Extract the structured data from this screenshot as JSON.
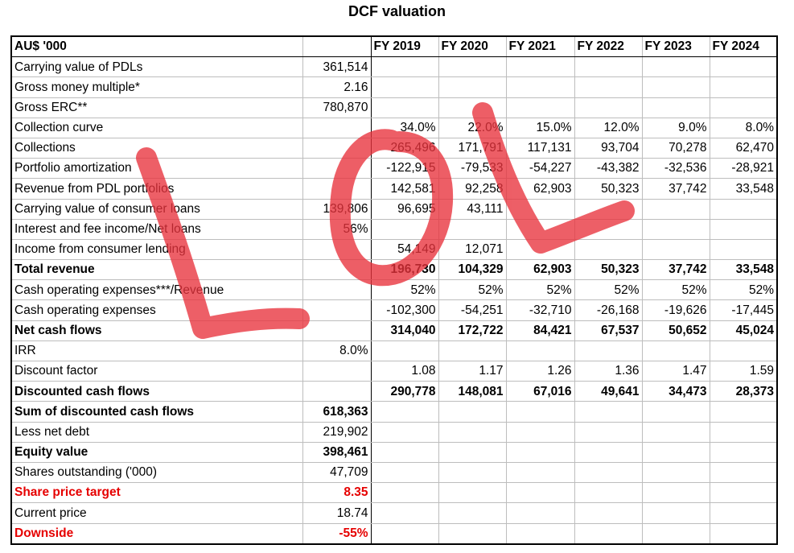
{
  "title": "DCF valuation",
  "header": {
    "unit_label": "AU$ '000",
    "years": [
      "FY 2019",
      "FY 2020",
      "FY 2021",
      "FY 2022",
      "FY 2023",
      "FY 2024"
    ]
  },
  "rows": [
    {
      "label": "Carrying value of PDLs",
      "value": "361,514",
      "years": [
        "",
        "",
        "",
        "",
        "",
        ""
      ]
    },
    {
      "label": "Gross money multiple*",
      "value": "2.16",
      "years": [
        "",
        "",
        "",
        "",
        "",
        ""
      ]
    },
    {
      "label": "Gross ERC**",
      "value": "780,870",
      "years": [
        "",
        "",
        "",
        "",
        "",
        ""
      ]
    },
    {
      "label": "Collection curve",
      "value": "",
      "years": [
        "34.0%",
        "22.0%",
        "15.0%",
        "12.0%",
        "9.0%",
        "8.0%"
      ]
    },
    {
      "label": "Collections",
      "value": "",
      "years": [
        "265,496",
        "171,791",
        "117,131",
        "93,704",
        "70,278",
        "62,470"
      ]
    },
    {
      "label": "Portfolio amortization",
      "value": "",
      "years": [
        "-122,915",
        "-79,533",
        "-54,227",
        "-43,382",
        "-32,536",
        "-28,921"
      ]
    },
    {
      "label": "Revenue from PDL portfolios",
      "value": "",
      "years": [
        "142,581",
        "92,258",
        "62,903",
        "50,323",
        "37,742",
        "33,548"
      ]
    },
    {
      "label": "Carrying value of consumer loans",
      "value": "139,806",
      "years": [
        "96,695",
        "43,111",
        "",
        "",
        "",
        ""
      ]
    },
    {
      "label": "Interest and fee income/Net loans",
      "value": "56%",
      "years": [
        "",
        "",
        "",
        "",
        "",
        ""
      ]
    },
    {
      "label": "Income from consumer lending",
      "value": "",
      "years": [
        "54,149",
        "12,071",
        "",
        "",
        "",
        ""
      ]
    },
    {
      "label": "Total revenue",
      "value": "",
      "years": [
        "196,730",
        "104,329",
        "62,903",
        "50,323",
        "37,742",
        "33,548"
      ]
    },
    {
      "label": "Cash operating expenses***/Revenue",
      "value": "",
      "years": [
        "52%",
        "52%",
        "52%",
        "52%",
        "52%",
        "52%"
      ]
    },
    {
      "label": "Cash operating expenses",
      "value": "",
      "years": [
        "-102,300",
        "-54,251",
        "-32,710",
        "-26,168",
        "-19,626",
        "-17,445"
      ]
    },
    {
      "label": "Net cash flows",
      "value": "",
      "years": [
        "314,040",
        "172,722",
        "84,421",
        "67,537",
        "50,652",
        "45,024"
      ]
    },
    {
      "label": "IRR",
      "value": "8.0%",
      "years": [
        "",
        "",
        "",
        "",
        "",
        ""
      ]
    },
    {
      "label": "Discount factor",
      "value": "",
      "years": [
        "1.08",
        "1.17",
        "1.26",
        "1.36",
        "1.47",
        "1.59"
      ]
    },
    {
      "label": "Discounted cash flows",
      "value": "",
      "years": [
        "290,778",
        "148,081",
        "67,016",
        "49,641",
        "34,473",
        "28,373"
      ]
    },
    {
      "label": "Sum of discounted cash flows",
      "value": "618,363",
      "years": [
        "",
        "",
        "",
        "",
        "",
        ""
      ]
    },
    {
      "label": "Less net debt",
      "value": "219,902",
      "years": [
        "",
        "",
        "",
        "",
        "",
        ""
      ]
    },
    {
      "label": "Equity value",
      "value": "398,461",
      "years": [
        "",
        "",
        "",
        "",
        "",
        ""
      ]
    },
    {
      "label": "Shares outstanding ('000)",
      "value": "47,709",
      "years": [
        "",
        "",
        "",
        "",
        "",
        ""
      ]
    },
    {
      "label": "Share price target",
      "value": "8.35",
      "years": [
        "",
        "",
        "",
        "",
        "",
        ""
      ]
    },
    {
      "label": "Current price",
      "value": "18.74",
      "years": [
        "",
        "",
        "",
        "",
        "",
        ""
      ]
    },
    {
      "label": "Downside",
      "value": "-55%",
      "years": [
        "",
        "",
        "",
        "",
        "",
        ""
      ]
    }
  ],
  "colors": {
    "highlight_text": "#e60000",
    "overlay_stroke": "#e8323c"
  }
}
